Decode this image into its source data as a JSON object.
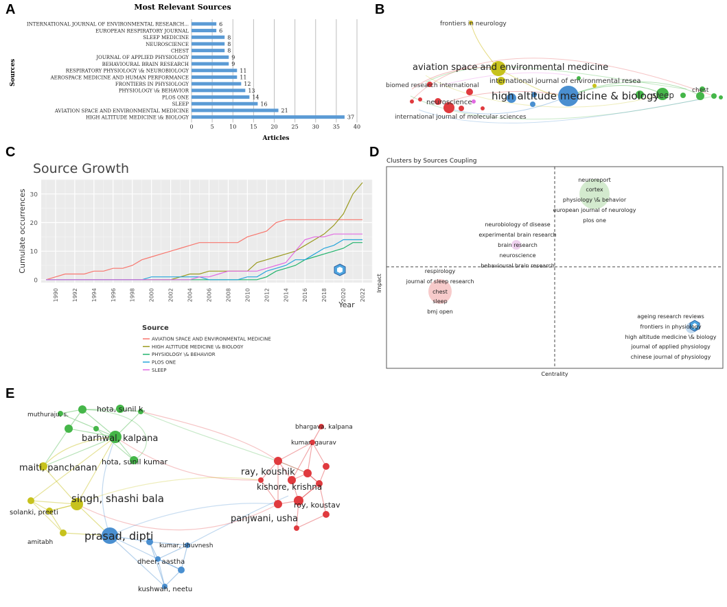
{
  "panels": {
    "a": {
      "letter": "A"
    },
    "b": {
      "letter": "B"
    },
    "c": {
      "letter": "C"
    },
    "d": {
      "letter": "D"
    },
    "e": {
      "letter": "E"
    }
  },
  "chart_data": [
    {
      "id": "A",
      "type": "bar",
      "orientation": "horizontal",
      "title": "Most Relevant Sources",
      "xlabel": "Articles",
      "ylabel": "Sources",
      "xlim": [
        0,
        40
      ],
      "xticks": [
        "0",
        "5",
        "10",
        "15",
        "20",
        "25",
        "30",
        "35",
        "40"
      ],
      "categories": [
        "INTERNATIONAL JOURNAL OF ENVIRONMENTAL RESEARCH...",
        "EUROPEAN RESPIRATORY JOURNAL",
        "SLEEP MEDICINE",
        "NEUROSCIENCE",
        "CHEST",
        "JOURNAL OF APPLIED PHYSIOLOGY",
        "BEHAVIOURAL BRAIN RESEARCH",
        "RESPIRATORY PHYSIOLOGY \\& NEUROBIOLOGY",
        "AEROSPACE MEDICINE AND HUMAN PERFORMANCE",
        "FRONTIERS IN PHYSIOLOGY",
        "PHYSIOLOGY \\& BEHAVIOR",
        "PLOS ONE",
        "SLEEP",
        "AVIATION SPACE AND ENVIRONMENTAL MEDICINE",
        "HIGH ALTITUDE MEDICINE \\& BIOLOGY"
      ],
      "values": [
        6,
        6,
        8,
        8,
        8,
        9,
        9,
        11,
        11,
        12,
        13,
        14,
        16,
        21,
        37
      ],
      "labels": [
        "6",
        "6",
        "8",
        "8",
        "8",
        "9",
        "9",
        "11",
        "11",
        "12",
        "13",
        "14",
        "16",
        "21",
        "37"
      ],
      "colors": {
        "bar": "#5b9bd5"
      }
    },
    {
      "id": "B",
      "type": "network",
      "nodes": [
        {
          "label": "frontiers in neurology",
          "color": "#d4c12a"
        },
        {
          "label": "aviation space and environmental medicine",
          "color": "#c7c21d"
        },
        {
          "label": "biomed research international",
          "color": "#e03a3e"
        },
        {
          "label": "international journal of environmental resea",
          "color": "#4a8fd0"
        },
        {
          "label": "high altitude medicine & biology",
          "color": "#4a8fd0"
        },
        {
          "label": "sleep",
          "color": "#45b649"
        },
        {
          "label": "chest",
          "color": "#45b649"
        },
        {
          "label": "neuroscience",
          "color": "#e03a3e"
        },
        {
          "label": "international journal of molecular sciences",
          "color": "#e03a3e"
        }
      ]
    },
    {
      "id": "C",
      "type": "line",
      "title": "Source Growth",
      "xlabel": "Year",
      "ylabel": "Cumulate occurrences",
      "x": [
        1989,
        1990,
        1991,
        1992,
        1993,
        1994,
        1995,
        1996,
        1997,
        1998,
        1999,
        2000,
        2001,
        2002,
        2003,
        2004,
        2005,
        2006,
        2007,
        2008,
        2009,
        2010,
        2011,
        2012,
        2013,
        2014,
        2015,
        2016,
        2017,
        2018,
        2019,
        2020,
        2021,
        2022
      ],
      "xticks": [
        "1990",
        "1992",
        "1994",
        "1996",
        "1998",
        "2000",
        "2002",
        "2004",
        "2006",
        "2008",
        "2010",
        "2012",
        "2014",
        "2016",
        "2018",
        "2020",
        "2022"
      ],
      "yticks": [
        "0",
        "10",
        "20",
        "30"
      ],
      "ylim": [
        -1,
        35
      ],
      "xlim": [
        1988.5,
        2023
      ],
      "legend_title": "Source",
      "series": [
        {
          "name": "AVIATION SPACE AND ENVIRONMENTAL MEDICINE",
          "color": "#f8766d",
          "values": [
            0,
            1,
            2,
            2,
            2,
            3,
            3,
            4,
            4,
            5,
            7,
            8,
            9,
            10,
            11,
            12,
            13,
            13,
            13,
            13,
            13,
            15,
            16,
            17,
            20,
            21,
            21,
            21,
            21,
            21,
            21,
            21,
            21,
            21
          ]
        },
        {
          "name": "HIGH ALTITUDE MEDICINE \\& BIOLOGY",
          "color": "#9a9a1e",
          "values": [
            0,
            0,
            0,
            0,
            0,
            0,
            0,
            0,
            0,
            0,
            0,
            0,
            0,
            0,
            1,
            2,
            2,
            3,
            3,
            3,
            3,
            3,
            6,
            7,
            8,
            9,
            10,
            12,
            14,
            16,
            19,
            23,
            30,
            34
          ]
        },
        {
          "name": "PHYSIOLOGY \\& BEHAVIOR",
          "color": "#20b36c",
          "values": [
            0,
            0,
            0,
            0,
            0,
            0,
            0,
            0,
            0,
            0,
            0,
            0,
            0,
            0,
            0,
            0,
            0,
            0,
            0,
            0,
            0,
            0,
            0,
            1,
            3,
            4,
            5,
            7,
            8,
            9,
            10,
            11,
            13,
            13
          ]
        },
        {
          "name": "PLOS ONE",
          "color": "#26a5db",
          "values": [
            0,
            0,
            0,
            0,
            0,
            0,
            0,
            0,
            0,
            0,
            0,
            1,
            1,
            1,
            1,
            1,
            1,
            0,
            0,
            0,
            0,
            1,
            1,
            3,
            4,
            5,
            7,
            7,
            9,
            11,
            12,
            14,
            14,
            14
          ]
        },
        {
          "name": "SLEEP",
          "color": "#e26ae2",
          "values": [
            0,
            0,
            0,
            0,
            0,
            0,
            0,
            0,
            0,
            0,
            0,
            0,
            0,
            0,
            0,
            0,
            1,
            1,
            2,
            3,
            3,
            3,
            3,
            4,
            5,
            6,
            10,
            14,
            15,
            15,
            16,
            16,
            16,
            16
          ]
        }
      ]
    },
    {
      "id": "D",
      "type": "scatter",
      "title": "Clusters by Sources Coupling",
      "xlabel": "Centrality",
      "ylabel": "Impact",
      "clusters": [
        {
          "color": "#aed9a5",
          "labels": [
            "neuroreport",
            "cortex",
            "physiology \\& behavior",
            "european journal of neurology",
            "plos one"
          ]
        },
        {
          "color": "#e3b3e3",
          "labels": [
            "neurobiology of disease",
            "experimental brain research",
            "brain research",
            "neuroscience",
            "behavioural brain research"
          ]
        },
        {
          "color": "#f0a0a0",
          "labels": [
            "respirology",
            "journal of sleep research",
            "chest",
            "sleep",
            "bmj open"
          ]
        },
        {
          "color": "#9dc3e6",
          "labels": [
            "ageing research reviews",
            "frontiers in physiology",
            "high altitude medicine \\& biology",
            "journal of applied physiology",
            "chinese journal of physiology"
          ]
        }
      ]
    },
    {
      "id": "E",
      "type": "network",
      "nodes": [
        {
          "label": "hota, sunil k.",
          "color": "#45b649"
        },
        {
          "label": "muthuraju, s.",
          "color": "#45b649"
        },
        {
          "label": "barhwal, kalpana",
          "color": "#45b649"
        },
        {
          "label": "hota, sunil kumar",
          "color": "#45b649"
        },
        {
          "label": "maiti, panchanan",
          "color": "#c7c21d"
        },
        {
          "label": "singh, shashi bala",
          "color": "#c7c21d"
        },
        {
          "label": "solanki, preeti",
          "color": "#c7c21d"
        },
        {
          "label": "amitabh",
          "color": "#c7c21d"
        },
        {
          "label": "prasad, dipti",
          "color": "#4a8fd0"
        },
        {
          "label": "kumar, bhuvnesh",
          "color": "#4a8fd0"
        },
        {
          "label": "dheer, aastha",
          "color": "#4a8fd0"
        },
        {
          "label": "kushwah, neetu",
          "color": "#4a8fd0"
        },
        {
          "label": "bhargava, kalpana",
          "color": "#e03a3e"
        },
        {
          "label": "kumar, gaurav",
          "color": "#e03a3e"
        },
        {
          "label": "ray, koushik",
          "color": "#e03a3e"
        },
        {
          "label": "kishore, krishna",
          "color": "#e03a3e"
        },
        {
          "label": "roy, koustav",
          "color": "#e03a3e"
        },
        {
          "label": "panjwani, usha",
          "color": "#e03a3e"
        }
      ]
    }
  ]
}
